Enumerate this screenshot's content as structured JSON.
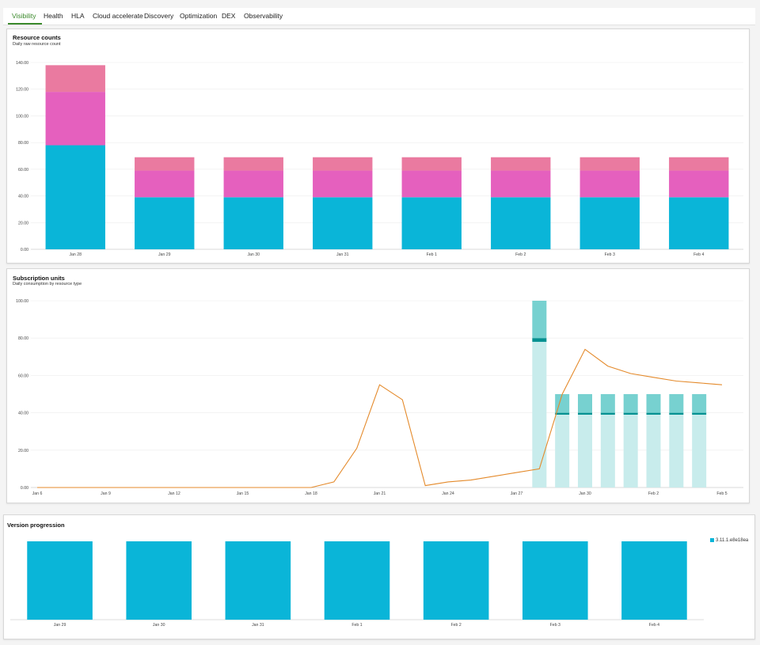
{
  "tabs": [
    {
      "label": "Visibility",
      "active": true
    },
    {
      "label": "Health"
    },
    {
      "label": "HLA"
    },
    {
      "label": "Cloud accelerate"
    },
    {
      "label": "Discovery"
    },
    {
      "label": "Optimization"
    },
    {
      "label": "DEX"
    },
    {
      "label": "Observability"
    }
  ],
  "colors": {
    "accent": "#3b8a2c",
    "cyan": "#0ab5d8",
    "magenta": "#e560be",
    "pink": "#ea7aa0",
    "teal_light": "#c8ecec",
    "teal_mid": "#77d1d0",
    "teal_dark": "#009090",
    "orange": "#e48a2b"
  },
  "panels": {
    "resource": {
      "title": "Resource counts",
      "subtitle": "Daily raw resource count"
    },
    "subscription": {
      "title": "Subscription units",
      "subtitle": "Daily consumption by resource type"
    },
    "version": {
      "title": "Version progression",
      "legend": "3.11.1.e8e18ea"
    }
  },
  "chart_data": [
    {
      "type": "bar",
      "stacked": true,
      "categories": [
        "Jan 28",
        "Jan 29",
        "Jan 30",
        "Jan 31",
        "Feb 1",
        "Feb 2",
        "Feb 3",
        "Feb 4"
      ],
      "series": [
        {
          "color": "#0ab5d8",
          "values": [
            78,
            39,
            39,
            39,
            39,
            39,
            39,
            39
          ]
        },
        {
          "color": "#e560be",
          "values": [
            40,
            20,
            20,
            20,
            20,
            20,
            20,
            20
          ]
        },
        {
          "color": "#ea7aa0",
          "values": [
            20,
            10,
            10,
            10,
            10,
            10,
            10,
            10
          ]
        }
      ],
      "ylim": [
        0,
        140
      ],
      "yticks": [
        "0.00",
        "20.00",
        "40.00",
        "60.00",
        "80.00",
        "100.00",
        "120.00",
        "140.00"
      ],
      "grid": true
    },
    {
      "type": "bar",
      "stacked": true,
      "x_ticks": [
        "Jan 6",
        "Jan 9",
        "Jan 12",
        "Jan 15",
        "Jan 18",
        "Jan 21",
        "Jan 24",
        "Jan 27",
        "Jan 30",
        "Feb 2",
        "Feb 5"
      ],
      "bar_dates": [
        "Jan 28",
        "Jan 29",
        "Jan 30",
        "Jan 31",
        "Feb 1",
        "Feb 2",
        "Feb 3",
        "Feb 4"
      ],
      "series": [
        {
          "color": "#c8ecec",
          "values": [
            78,
            39,
            39,
            39,
            39,
            39,
            39,
            39
          ]
        },
        {
          "color": "#009090",
          "values": [
            2,
            1,
            1,
            1,
            1,
            1,
            1,
            1
          ]
        },
        {
          "color": "#77d1d0",
          "values": [
            20,
            10,
            10,
            10,
            10,
            10,
            10,
            10
          ]
        }
      ],
      "line": {
        "type": "line",
        "color": "#e48a2b",
        "dates": [
          "Jan 6",
          "Jan 15",
          "Jan 16",
          "Jan 17",
          "Jan 18",
          "Jan 19",
          "Jan 20",
          "Jan 21",
          "Jan 22",
          "Jan 23",
          "Jan 24",
          "Jan 25",
          "Jan 26",
          "Jan 27",
          "Jan 28",
          "Jan 29",
          "Jan 30",
          "Jan 31",
          "Feb 1",
          "Feb 2",
          "Feb 3",
          "Feb 4",
          "Feb 5"
        ],
        "values": [
          0,
          0,
          0,
          0,
          0,
          3,
          21,
          55,
          47,
          1,
          3,
          4,
          6,
          8,
          10,
          50,
          74,
          65,
          61,
          59,
          57,
          56,
          55
        ]
      },
      "ylim": [
        0,
        100
      ],
      "yticks": [
        "0.00",
        "20.00",
        "40.00",
        "60.00",
        "80.00",
        "100.00"
      ],
      "grid": true
    },
    {
      "type": "bar",
      "categories": [
        "Jan 29",
        "Jan 30",
        "Jan 31",
        "Feb 1",
        "Feb 2",
        "Feb 3",
        "Feb 4"
      ],
      "series": [
        {
          "name": "3.11.1.e8e18ea",
          "color": "#0ab5d8",
          "values": [
            1,
            1,
            1,
            1,
            1,
            1,
            1
          ]
        }
      ],
      "ylim": [
        0,
        1
      ]
    }
  ]
}
